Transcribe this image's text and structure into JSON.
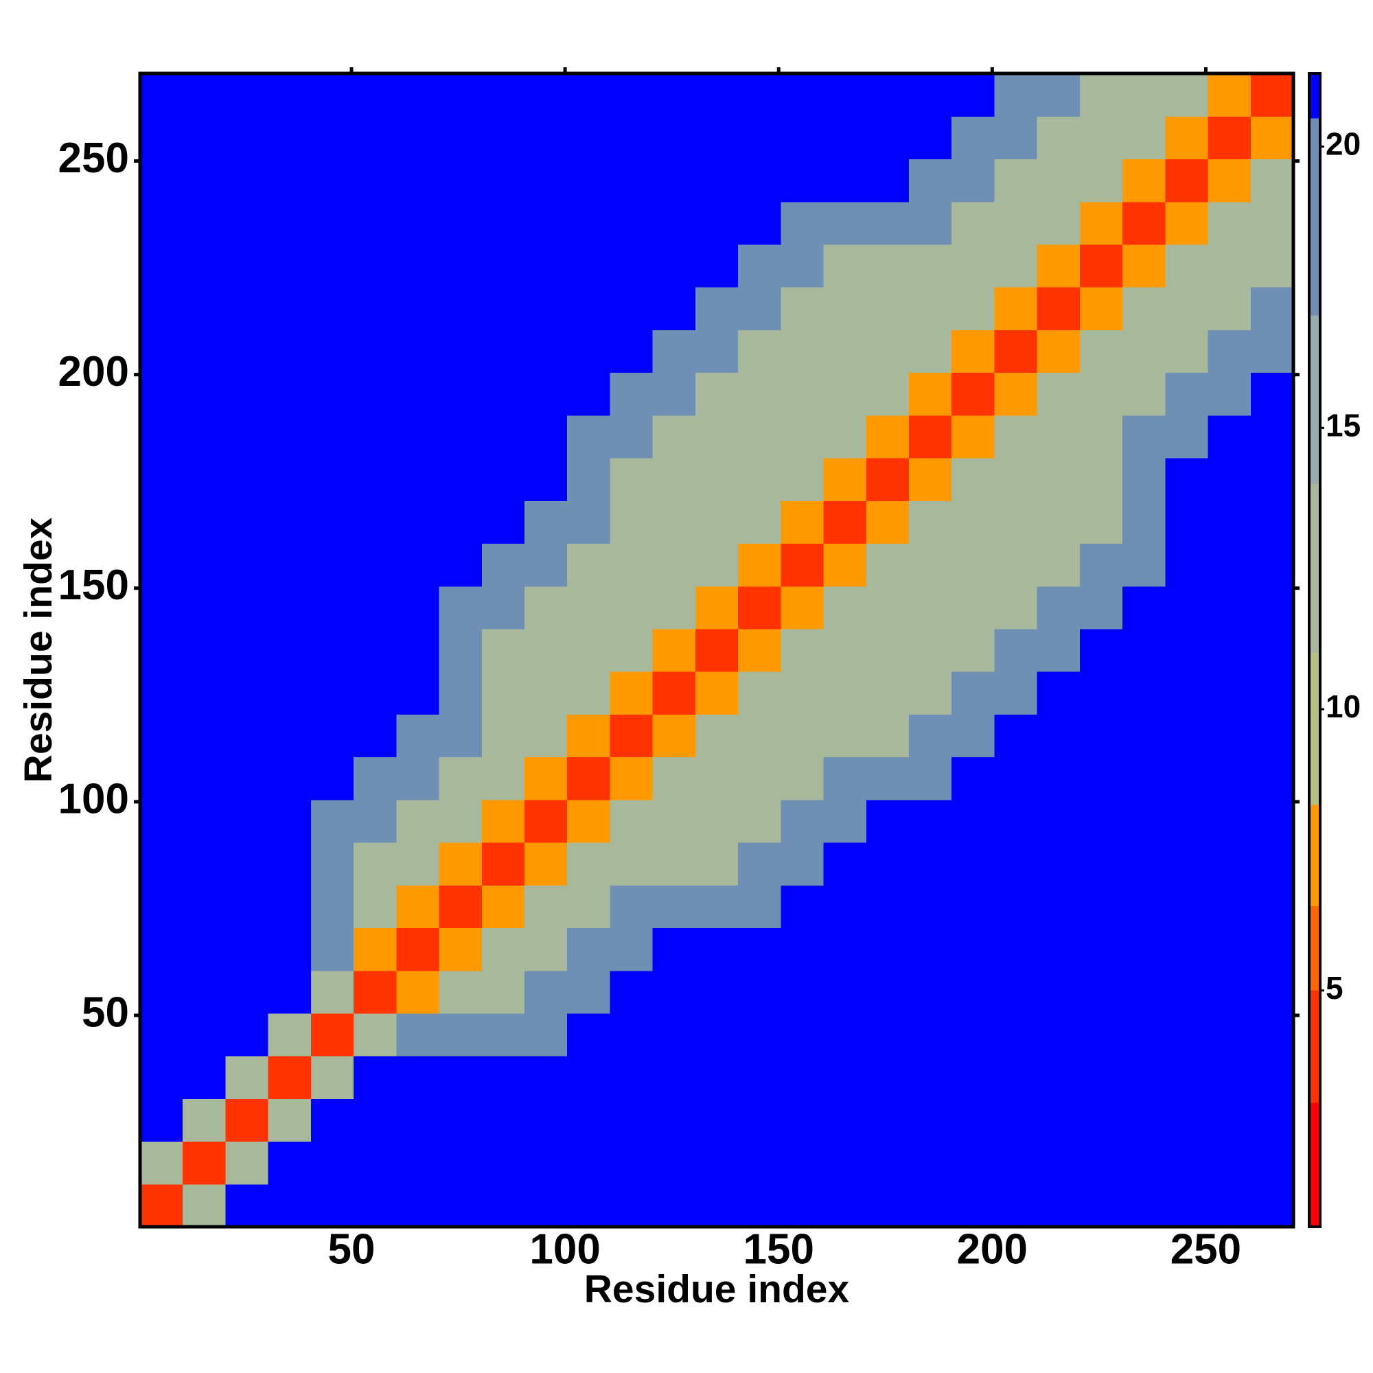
{
  "chart_data": {
    "type": "heatmap",
    "x_label": "Residue index",
    "y_label": "Residue index",
    "xlim": [
      0.5,
      270.5
    ],
    "ylim": [
      0.5,
      270.5
    ],
    "xticks": [
      50,
      100,
      150,
      200,
      250
    ],
    "yticks": [
      50,
      100,
      150,
      200,
      250
    ],
    "bins": [
      0.5,
      10.5,
      20.5,
      30.5,
      40.5,
      50.5,
      60.5,
      70.5,
      80.5,
      90.5,
      100.5,
      110.5,
      120.5,
      130.5,
      140.5,
      150.5,
      160.5,
      170.5,
      180.5,
      190.5,
      200.5,
      210.5,
      220.5,
      230.5,
      240.5,
      250.5,
      260.5,
      270.5
    ],
    "matrix": [
      [
        4,
        12,
        21,
        21,
        21,
        21,
        21,
        21,
        21,
        21,
        21,
        21,
        21,
        21,
        21,
        21,
        21,
        21,
        21,
        21,
        21,
        21,
        21,
        21,
        21,
        21,
        21
      ],
      [
        12,
        4,
        12,
        21,
        21,
        21,
        21,
        21,
        21,
        21,
        21,
        21,
        21,
        21,
        21,
        21,
        21,
        21,
        21,
        21,
        21,
        21,
        21,
        21,
        21,
        21,
        21
      ],
      [
        21,
        12,
        4,
        12,
        21,
        21,
        21,
        21,
        21,
        21,
        21,
        21,
        21,
        21,
        21,
        21,
        21,
        21,
        21,
        21,
        21,
        21,
        21,
        21,
        21,
        21,
        21
      ],
      [
        21,
        21,
        12,
        4,
        12,
        21,
        21,
        21,
        21,
        21,
        21,
        21,
        21,
        21,
        21,
        21,
        21,
        21,
        21,
        21,
        21,
        21,
        21,
        21,
        21,
        21,
        21
      ],
      [
        21,
        21,
        21,
        12,
        4,
        12,
        17,
        17,
        17,
        17,
        21,
        21,
        21,
        21,
        21,
        21,
        21,
        21,
        21,
        21,
        21,
        21,
        21,
        21,
        21,
        21,
        21
      ],
      [
        21,
        21,
        21,
        21,
        12,
        4,
        8,
        13,
        13,
        17,
        17,
        21,
        21,
        21,
        21,
        21,
        21,
        21,
        21,
        21,
        21,
        21,
        21,
        21,
        21,
        21,
        21
      ],
      [
        21,
        21,
        21,
        21,
        17,
        8,
        4,
        8,
        13,
        13,
        17,
        17,
        21,
        21,
        21,
        21,
        21,
        21,
        21,
        21,
        21,
        21,
        21,
        21,
        21,
        21,
        21
      ],
      [
        21,
        21,
        21,
        21,
        17,
        13,
        8,
        4,
        8,
        13,
        13,
        17,
        17,
        17,
        17,
        21,
        21,
        21,
        21,
        21,
        21,
        21,
        21,
        21,
        21,
        21,
        21
      ],
      [
        21,
        21,
        21,
        21,
        17,
        13,
        13,
        8,
        4,
        8,
        13,
        13,
        13,
        13,
        17,
        17,
        21,
        21,
        21,
        21,
        21,
        21,
        21,
        21,
        21,
        21,
        21
      ],
      [
        21,
        21,
        21,
        21,
        17,
        17,
        13,
        13,
        8,
        4,
        8,
        13,
        13,
        13,
        13,
        17,
        17,
        21,
        21,
        21,
        21,
        21,
        21,
        21,
        21,
        21,
        21
      ],
      [
        21,
        21,
        21,
        21,
        21,
        17,
        17,
        13,
        13,
        8,
        4,
        8,
        13,
        13,
        13,
        13,
        17,
        17,
        17,
        21,
        21,
        21,
        21,
        21,
        21,
        21,
        21
      ],
      [
        21,
        21,
        21,
        21,
        21,
        21,
        17,
        17,
        13,
        13,
        8,
        4,
        8,
        13,
        13,
        13,
        13,
        13,
        17,
        17,
        21,
        21,
        21,
        21,
        21,
        21,
        21
      ],
      [
        21,
        21,
        21,
        21,
        21,
        21,
        21,
        17,
        13,
        13,
        13,
        8,
        4,
        8,
        13,
        13,
        13,
        13,
        13,
        17,
        17,
        21,
        21,
        21,
        21,
        21,
        21
      ],
      [
        21,
        21,
        21,
        21,
        21,
        21,
        21,
        17,
        13,
        13,
        13,
        13,
        8,
        4,
        8,
        13,
        13,
        13,
        13,
        13,
        17,
        17,
        21,
        21,
        21,
        21,
        21
      ],
      [
        21,
        21,
        21,
        21,
        21,
        21,
        21,
        17,
        17,
        13,
        13,
        13,
        13,
        8,
        4,
        8,
        13,
        13,
        13,
        13,
        13,
        17,
        17,
        21,
        21,
        21,
        21
      ],
      [
        21,
        21,
        21,
        21,
        21,
        21,
        21,
        21,
        17,
        17,
        13,
        13,
        13,
        13,
        8,
        4,
        8,
        13,
        13,
        13,
        13,
        13,
        17,
        17,
        21,
        21,
        21
      ],
      [
        21,
        21,
        21,
        21,
        21,
        21,
        21,
        21,
        21,
        17,
        17,
        13,
        13,
        13,
        13,
        8,
        4,
        8,
        13,
        13,
        13,
        13,
        13,
        17,
        21,
        21,
        21
      ],
      [
        21,
        21,
        21,
        21,
        21,
        21,
        21,
        21,
        21,
        21,
        17,
        13,
        13,
        13,
        13,
        13,
        8,
        4,
        8,
        13,
        13,
        13,
        13,
        17,
        21,
        21,
        21
      ],
      [
        21,
        21,
        21,
        21,
        21,
        21,
        21,
        21,
        21,
        21,
        17,
        17,
        13,
        13,
        13,
        13,
        13,
        8,
        4,
        8,
        13,
        13,
        13,
        17,
        17,
        21,
        21
      ],
      [
        21,
        21,
        21,
        21,
        21,
        21,
        21,
        21,
        21,
        21,
        21,
        17,
        17,
        13,
        13,
        13,
        13,
        13,
        8,
        4,
        8,
        13,
        13,
        13,
        17,
        17,
        21
      ],
      [
        21,
        21,
        21,
        21,
        21,
        21,
        21,
        21,
        21,
        21,
        21,
        21,
        17,
        17,
        13,
        13,
        13,
        13,
        13,
        8,
        4,
        8,
        13,
        13,
        13,
        17,
        17
      ],
      [
        21,
        21,
        21,
        21,
        21,
        21,
        21,
        21,
        21,
        21,
        21,
        21,
        21,
        17,
        17,
        13,
        13,
        13,
        13,
        13,
        8,
        4,
        8,
        13,
        13,
        13,
        17
      ],
      [
        21,
        21,
        21,
        21,
        21,
        21,
        21,
        21,
        21,
        21,
        21,
        21,
        21,
        21,
        17,
        17,
        13,
        13,
        13,
        13,
        13,
        8,
        4,
        8,
        13,
        13,
        13
      ],
      [
        21,
        21,
        21,
        21,
        21,
        21,
        21,
        21,
        21,
        21,
        21,
        21,
        21,
        21,
        21,
        17,
        17,
        17,
        17,
        13,
        13,
        13,
        8,
        4,
        8,
        13,
        13
      ],
      [
        21,
        21,
        21,
        21,
        21,
        21,
        21,
        21,
        21,
        21,
        21,
        21,
        21,
        21,
        21,
        21,
        21,
        21,
        17,
        17,
        13,
        13,
        13,
        8,
        4,
        8,
        13
      ],
      [
        21,
        21,
        21,
        21,
        21,
        21,
        21,
        21,
        21,
        21,
        21,
        21,
        21,
        21,
        21,
        21,
        21,
        21,
        21,
        17,
        17,
        13,
        13,
        13,
        8,
        4,
        8
      ],
      [
        21,
        21,
        21,
        21,
        21,
        21,
        21,
        21,
        21,
        21,
        21,
        21,
        21,
        21,
        21,
        21,
        21,
        21,
        21,
        21,
        17,
        17,
        13,
        13,
        13,
        8,
        4
      ]
    ],
    "colorbar": {
      "lim": [
        0.8,
        21.3
      ],
      "ticks": [
        5,
        10,
        15,
        20
      ],
      "levels": [
        0.8,
        3,
        5,
        6.5,
        8.3,
        11,
        14,
        17,
        20.5,
        21.3
      ],
      "colors": [
        "#ff0000",
        "#ff3300",
        "#ff6600",
        "#ff9900",
        "#b8c080",
        "#a8b89a",
        "#9aabb0",
        "#6f8fb5",
        "#0000ff"
      ]
    }
  }
}
